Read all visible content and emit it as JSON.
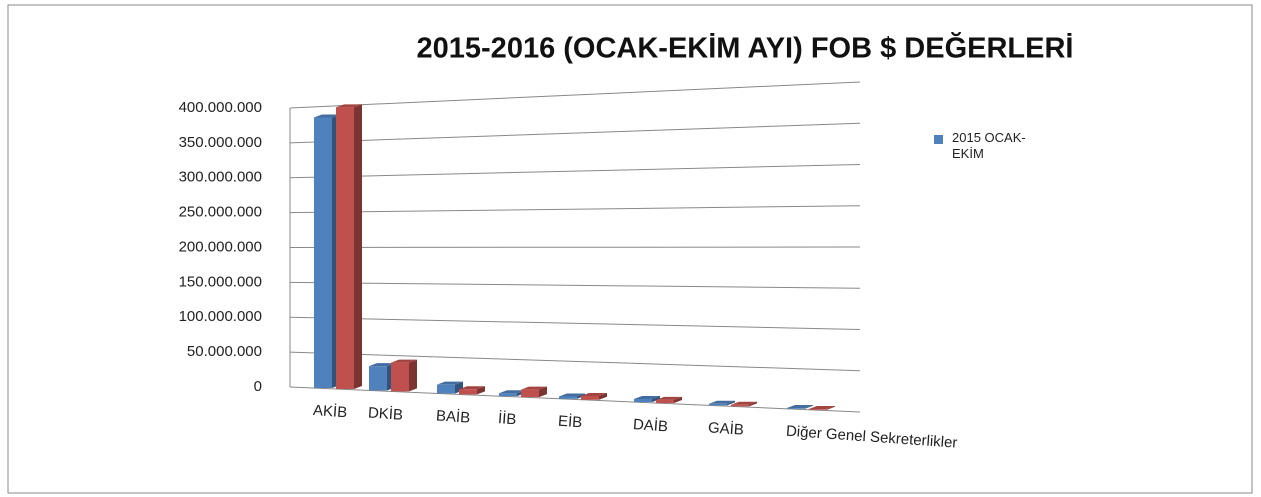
{
  "chart_data": {
    "type": "bar",
    "title": "2015-2016 (OCAK-EKİM AYI) FOB $ DEĞERLERİ",
    "categories": [
      "AKİB",
      "DKİB",
      "BAİB",
      "İİB",
      "EİB",
      "DAİB",
      "GAİB",
      "Diğer Genel Sekreterlikler"
    ],
    "series": [
      {
        "name": "2015 OCAK-EKİM",
        "color": "#4f81bd",
        "values": [
          385000000,
          34000000,
          12000000,
          4000000,
          3000000,
          4000000,
          2000000,
          1000000
        ]
      },
      {
        "color": "#c0504d",
        "values": [
          398000000,
          40000000,
          7000000,
          10000000,
          5000000,
          4000000,
          2000000,
          1000000
        ]
      }
    ],
    "ylim": [
      0,
      400000000
    ],
    "yticks": [
      0,
      {
        "value": 50000000,
        "label": "50.000.000"
      },
      {
        "value": 100000000,
        "label": "100.000.000"
      },
      {
        "value": 150000000,
        "label": "150.000.000"
      },
      {
        "value": 200000000,
        "label": "200.000.000"
      },
      {
        "value": 250000000,
        "label": "250.000.000"
      },
      {
        "value": 300000000,
        "label": "300.000.000"
      },
      {
        "value": 350000000,
        "label": "350.000.000"
      },
      {
        "value": 400000000,
        "label": "400.000.000"
      }
    ],
    "grid": true,
    "legend": "right"
  }
}
